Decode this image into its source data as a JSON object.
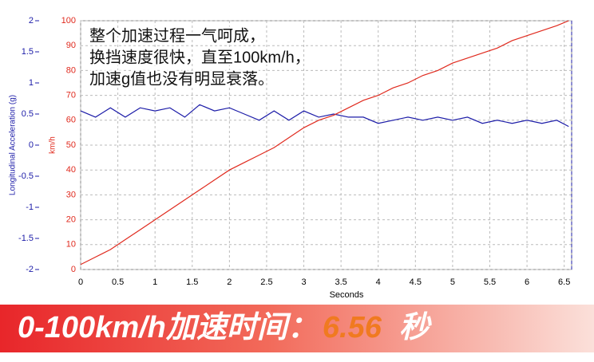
{
  "chart_data": {
    "type": "line",
    "x_label": "Seconds",
    "y_label": "Longitudinal Acceleration (g)",
    "y2_label": "km/h",
    "annotations": [
      "整个加速过程一气呵成，",
      "换挡速度很快，直至100km/h，",
      "加速g值也没有明显衰落。"
    ],
    "x": [
      0,
      0.2,
      0.4,
      0.6,
      0.8,
      1.0,
      1.2,
      1.4,
      1.6,
      1.8,
      2.0,
      2.2,
      2.4,
      2.6,
      2.8,
      3.0,
      3.2,
      3.4,
      3.6,
      3.8,
      4.0,
      4.2,
      4.4,
      4.6,
      4.8,
      5.0,
      5.2,
      5.4,
      5.6,
      5.8,
      6.0,
      6.2,
      6.4,
      6.56
    ],
    "series": [
      {
        "name": "Longitudinal Acceleration (g)",
        "color": "#1c1ca8",
        "axis": "y",
        "values": [
          0.55,
          0.45,
          0.6,
          0.45,
          0.6,
          0.55,
          0.6,
          0.45,
          0.65,
          0.55,
          0.6,
          0.5,
          0.4,
          0.55,
          0.4,
          0.55,
          0.45,
          0.5,
          0.45,
          0.45,
          0.35,
          0.4,
          0.45,
          0.4,
          0.45,
          0.4,
          0.45,
          0.35,
          0.4,
          0.35,
          0.4,
          0.35,
          0.4,
          0.3
        ]
      },
      {
        "name": "km/h",
        "color": "#e02a1e",
        "axis": "y2",
        "values": [
          2,
          5,
          8,
          12,
          16,
          20,
          24,
          28,
          32,
          36,
          40,
          43,
          46,
          49,
          53,
          57,
          60,
          62,
          65,
          68,
          70,
          73,
          75,
          78,
          80,
          83,
          85,
          87,
          89,
          92,
          94,
          96,
          98,
          100
        ]
      }
    ],
    "xlim": [
      0,
      6.6
    ],
    "xticks": [
      0,
      0.5,
      1,
      1.5,
      2,
      2.5,
      3,
      3.5,
      4,
      4.5,
      5,
      5.5,
      6,
      6.5
    ],
    "ylim": [
      -2,
      2
    ],
    "yticks": [
      -2,
      -1.5,
      -1,
      -0.5,
      0,
      0.5,
      1,
      1.5,
      2
    ],
    "y2lim": [
      0,
      100
    ],
    "y2ticks": [
      0,
      10,
      20,
      30,
      40,
      50,
      60,
      70,
      80,
      90,
      100
    ],
    "grid": true
  },
  "banner": {
    "label": "0-100km/h加速时间：",
    "value": "6.56",
    "unit": "秒"
  }
}
